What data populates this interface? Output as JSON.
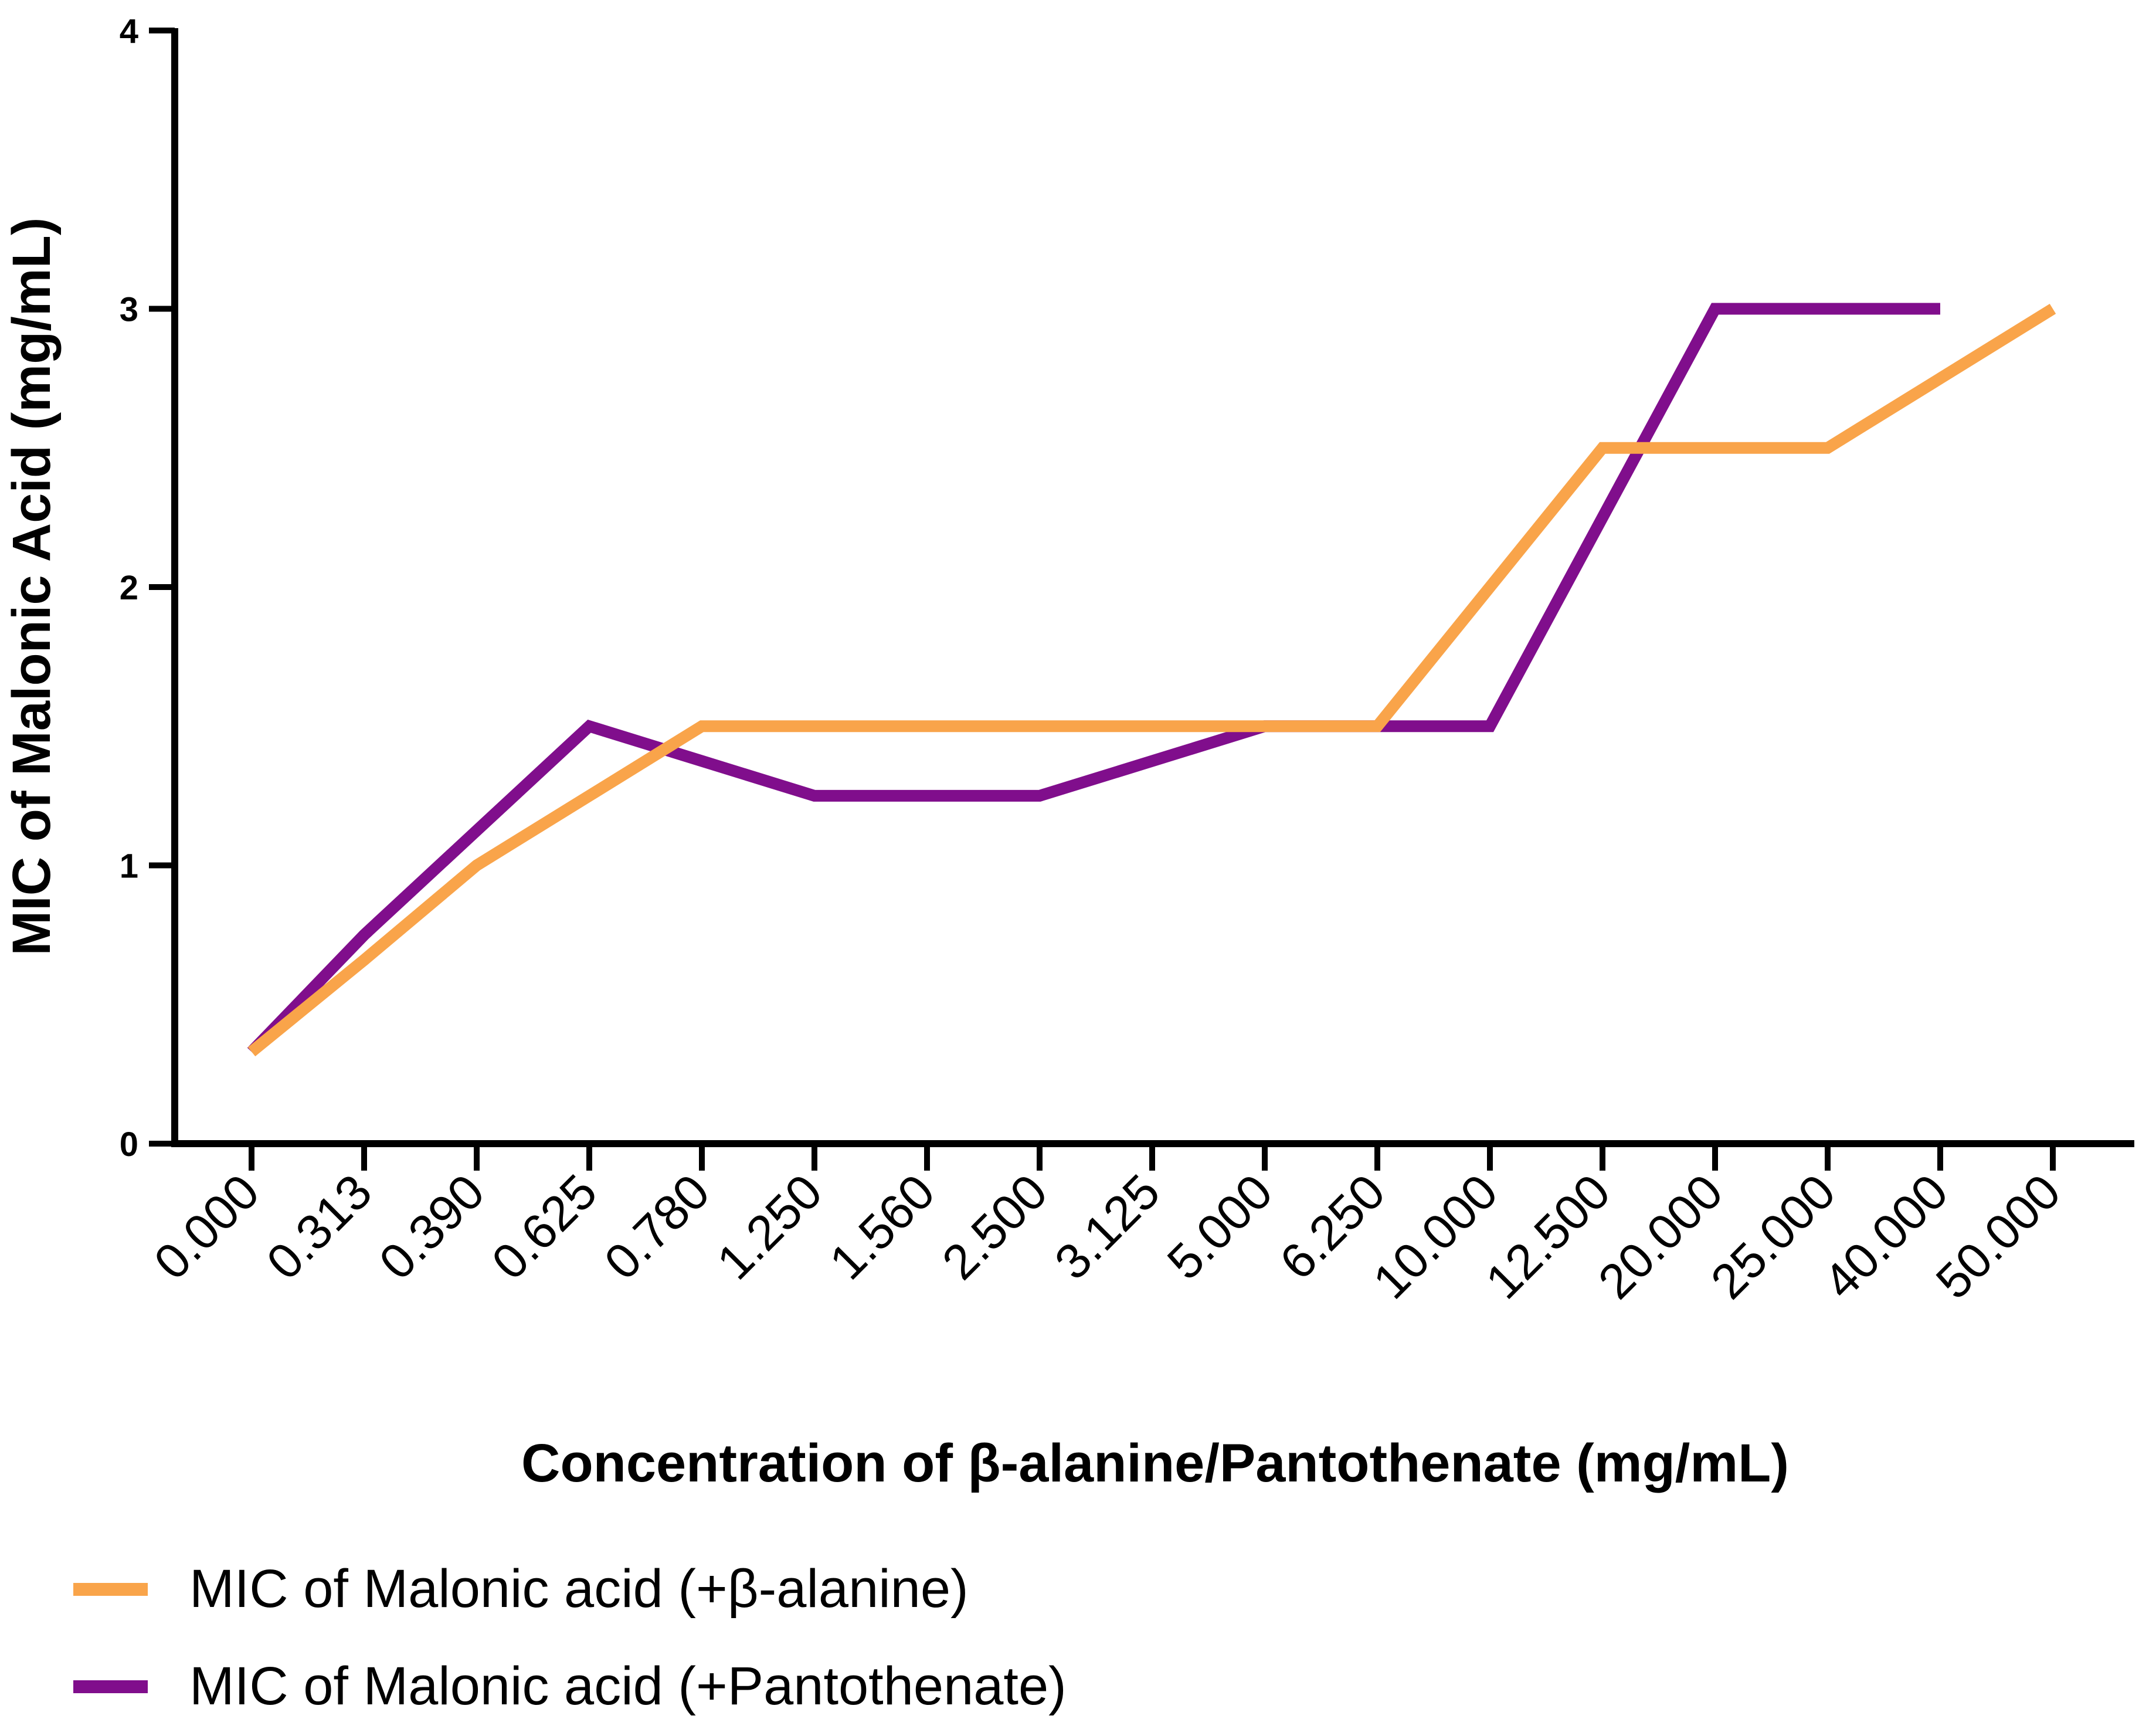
{
  "chart_data": {
    "type": "line",
    "xlabel": "Concentration of β-alanine/Pantothenate (mg/mL)",
    "ylabel": "MIC of Malonic Acid (mg/mL)",
    "categories": [
      "0.000",
      "0.313",
      "0.390",
      "0.625",
      "0.780",
      "1.250",
      "1.560",
      "2.500",
      "3.125",
      "5.000",
      "6.250",
      "10.000",
      "12.500",
      "20.000",
      "25.000",
      "40.000",
      "50.000"
    ],
    "ylim": [
      0,
      4
    ],
    "yticks": [
      "0",
      "1",
      "2",
      "3",
      "4"
    ],
    "grid": false,
    "legend_position": "bottom-left",
    "series": [
      {
        "name": "MIC of Malonic acid (+β-alanine)",
        "color": "#F9A44A",
        "values": [
          0.33,
          0.66,
          1.0,
          1.25,
          1.5,
          1.5,
          1.5,
          1.5,
          1.5,
          1.5,
          1.5,
          2.0,
          2.5,
          2.5,
          2.5,
          2.75,
          3.0
        ]
      },
      {
        "name": "MIC of Malonic acid (+Pantothenate)",
        "color": "#800E8C",
        "values": [
          0.33,
          0.75,
          1.125,
          1.5,
          1.375,
          1.25,
          1.25,
          1.25,
          1.375,
          1.5,
          1.5,
          1.5,
          2.25,
          3.0,
          3.0,
          3.0,
          null
        ]
      }
    ]
  }
}
